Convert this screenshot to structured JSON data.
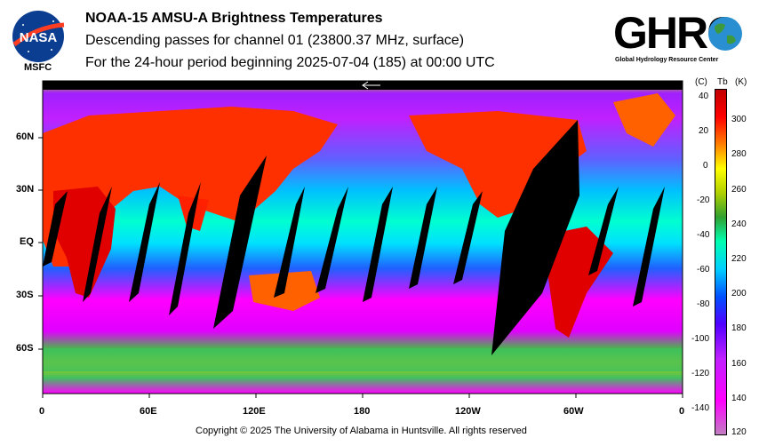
{
  "header": {
    "title": "NOAA-15 AMSU-A Brightness Temperatures",
    "subtitle1": "Descending passes for channel 01 (23800.37 MHz, surface)",
    "subtitle2": "For the 24-hour period beginning 2025-07-04 (185) at 00:00 UTC"
  },
  "logos": {
    "nasa_text": "NASA",
    "msfc_text": "MSFC",
    "ghrc_text": "GHRC",
    "ghrc_subtitle": "Global Hydrology Resource Center"
  },
  "footer": {
    "copyright": "Copyright © 2025 The University of Alabama in Huntsville.  All rights reserved"
  },
  "chart_data": {
    "type": "heatmap",
    "x_tick_labels": [
      "0",
      "60E",
      "120E",
      "180",
      "120W",
      "60W",
      "0"
    ],
    "y_tick_labels": [
      "60N",
      "30N",
      "EQ",
      "30S",
      "60S"
    ],
    "colorbar": {
      "unit_c_label": "(C)",
      "unit_var_label": "Tb",
      "unit_k_label": "(K)",
      "celsius_ticks": [
        "40",
        "20",
        "0",
        "-20",
        "-40",
        "-60",
        "-80",
        "-100",
        "-120",
        "-140"
      ],
      "kelvin_ticks": [
        "300",
        "280",
        "260",
        "240",
        "220",
        "200",
        "180",
        "160",
        "140",
        "120"
      ],
      "range_k": [
        120,
        310
      ],
      "colors": [
        "#c080c0",
        "#ff00ff",
        "#c020ff",
        "#5000ff",
        "#0050ff",
        "#00d0ff",
        "#00ffb0",
        "#30a030",
        "#b0d000",
        "#ffff00",
        "#ff8000",
        "#ff0000",
        "#c00000"
      ]
    }
  }
}
